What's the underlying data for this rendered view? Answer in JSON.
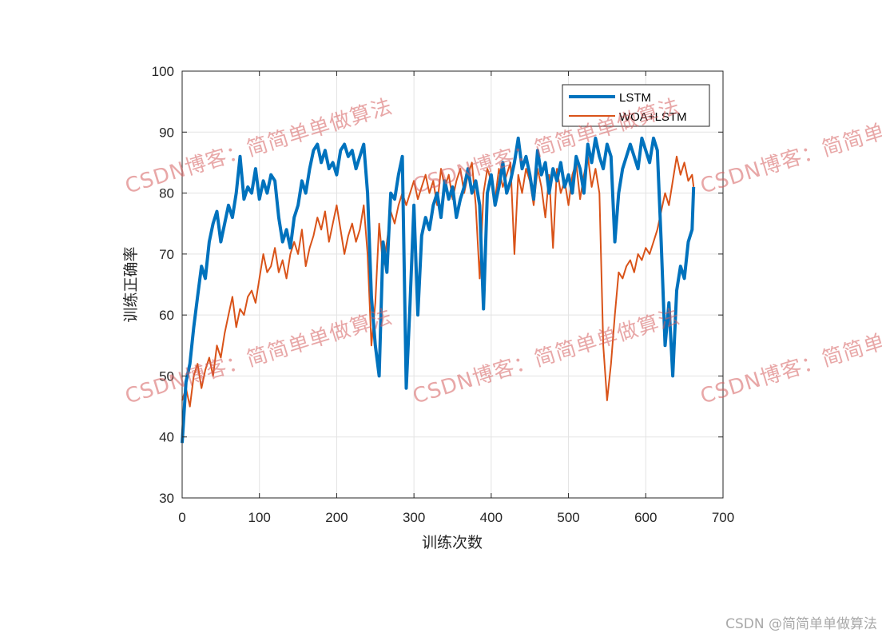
{
  "chart_data": {
    "type": "line",
    "title": "",
    "xlabel": "训练次数",
    "ylabel": "训练正确率",
    "xlim": [
      0,
      700
    ],
    "ylim": [
      30,
      100
    ],
    "xticks": [
      0,
      100,
      200,
      300,
      400,
      500,
      600,
      700
    ],
    "yticks": [
      30,
      40,
      50,
      60,
      70,
      80,
      90,
      100
    ],
    "grid": true,
    "legend_position": "top-right",
    "series": [
      {
        "name": "LSTM",
        "color": "#0072BD",
        "points": [
          [
            0,
            39
          ],
          [
            5,
            49
          ],
          [
            10,
            52
          ],
          [
            15,
            58
          ],
          [
            20,
            63
          ],
          [
            25,
            68
          ],
          [
            30,
            66
          ],
          [
            35,
            72
          ],
          [
            40,
            75
          ],
          [
            45,
            77
          ],
          [
            50,
            72
          ],
          [
            55,
            75
          ],
          [
            60,
            78
          ],
          [
            65,
            76
          ],
          [
            70,
            80
          ],
          [
            75,
            86
          ],
          [
            80,
            79
          ],
          [
            85,
            81
          ],
          [
            90,
            80
          ],
          [
            95,
            84
          ],
          [
            100,
            79
          ],
          [
            105,
            82
          ],
          [
            110,
            80
          ],
          [
            115,
            83
          ],
          [
            120,
            82
          ],
          [
            125,
            76
          ],
          [
            130,
            72
          ],
          [
            135,
            74
          ],
          [
            140,
            71
          ],
          [
            145,
            76
          ],
          [
            150,
            78
          ],
          [
            155,
            82
          ],
          [
            160,
            80
          ],
          [
            165,
            84
          ],
          [
            170,
            87
          ],
          [
            175,
            88
          ],
          [
            180,
            85
          ],
          [
            185,
            87
          ],
          [
            190,
            84
          ],
          [
            195,
            85
          ],
          [
            200,
            83
          ],
          [
            205,
            87
          ],
          [
            210,
            88
          ],
          [
            215,
            86
          ],
          [
            220,
            87
          ],
          [
            225,
            84
          ],
          [
            230,
            86
          ],
          [
            235,
            88
          ],
          [
            240,
            80
          ],
          [
            245,
            63
          ],
          [
            250,
            55
          ],
          [
            255,
            50
          ],
          [
            260,
            72
          ],
          [
            265,
            67
          ],
          [
            270,
            80
          ],
          [
            275,
            79
          ],
          [
            280,
            83
          ],
          [
            285,
            86
          ],
          [
            290,
            48
          ],
          [
            295,
            62
          ],
          [
            300,
            78
          ],
          [
            305,
            60
          ],
          [
            310,
            73
          ],
          [
            315,
            76
          ],
          [
            320,
            74
          ],
          [
            325,
            78
          ],
          [
            330,
            80
          ],
          [
            335,
            76
          ],
          [
            340,
            82
          ],
          [
            345,
            79
          ],
          [
            350,
            81
          ],
          [
            355,
            76
          ],
          [
            360,
            79
          ],
          [
            365,
            81
          ],
          [
            370,
            84
          ],
          [
            375,
            80
          ],
          [
            380,
            82
          ],
          [
            385,
            78
          ],
          [
            390,
            61
          ],
          [
            395,
            80
          ],
          [
            400,
            83
          ],
          [
            405,
            78
          ],
          [
            410,
            81
          ],
          [
            415,
            85
          ],
          [
            420,
            80
          ],
          [
            425,
            82
          ],
          [
            430,
            85
          ],
          [
            435,
            89
          ],
          [
            440,
            84
          ],
          [
            445,
            86
          ],
          [
            450,
            83
          ],
          [
            455,
            79
          ],
          [
            460,
            87
          ],
          [
            465,
            83
          ],
          [
            470,
            85
          ],
          [
            475,
            80
          ],
          [
            480,
            84
          ],
          [
            485,
            82
          ],
          [
            490,
            85
          ],
          [
            495,
            81
          ],
          [
            500,
            83
          ],
          [
            505,
            80
          ],
          [
            510,
            86
          ],
          [
            515,
            84
          ],
          [
            520,
            80
          ],
          [
            525,
            88
          ],
          [
            530,
            85
          ],
          [
            535,
            89
          ],
          [
            540,
            86
          ],
          [
            545,
            84
          ],
          [
            550,
            88
          ],
          [
            555,
            86
          ],
          [
            560,
            72
          ],
          [
            565,
            80
          ],
          [
            570,
            84
          ],
          [
            575,
            86
          ],
          [
            580,
            88
          ],
          [
            585,
            86
          ],
          [
            590,
            84
          ],
          [
            595,
            89
          ],
          [
            600,
            87
          ],
          [
            605,
            85
          ],
          [
            610,
            89
          ],
          [
            615,
            87
          ],
          [
            620,
            72
          ],
          [
            625,
            55
          ],
          [
            630,
            62
          ],
          [
            635,
            50
          ],
          [
            640,
            64
          ],
          [
            645,
            68
          ],
          [
            650,
            66
          ],
          [
            655,
            72
          ],
          [
            660,
            74
          ],
          [
            662,
            81
          ]
        ]
      },
      {
        "name": "WOA+LSTM",
        "color": "#D95319",
        "points": [
          [
            0,
            46
          ],
          [
            5,
            48
          ],
          [
            10,
            45
          ],
          [
            15,
            50
          ],
          [
            20,
            52
          ],
          [
            25,
            48
          ],
          [
            30,
            51
          ],
          [
            35,
            53
          ],
          [
            40,
            50
          ],
          [
            45,
            55
          ],
          [
            50,
            53
          ],
          [
            55,
            57
          ],
          [
            60,
            60
          ],
          [
            65,
            63
          ],
          [
            70,
            58
          ],
          [
            75,
            61
          ],
          [
            80,
            60
          ],
          [
            85,
            63
          ],
          [
            90,
            64
          ],
          [
            95,
            62
          ],
          [
            100,
            66
          ],
          [
            105,
            70
          ],
          [
            110,
            67
          ],
          [
            115,
            68
          ],
          [
            120,
            71
          ],
          [
            125,
            67
          ],
          [
            130,
            69
          ],
          [
            135,
            66
          ],
          [
            140,
            70
          ],
          [
            145,
            72
          ],
          [
            150,
            70
          ],
          [
            155,
            74
          ],
          [
            160,
            68
          ],
          [
            165,
            71
          ],
          [
            170,
            73
          ],
          [
            175,
            76
          ],
          [
            180,
            74
          ],
          [
            185,
            77
          ],
          [
            190,
            72
          ],
          [
            195,
            75
          ],
          [
            200,
            78
          ],
          [
            205,
            74
          ],
          [
            210,
            70
          ],
          [
            215,
            73
          ],
          [
            220,
            75
          ],
          [
            225,
            72
          ],
          [
            230,
            74
          ],
          [
            235,
            78
          ],
          [
            240,
            70
          ],
          [
            245,
            55
          ],
          [
            250,
            62
          ],
          [
            255,
            75
          ],
          [
            260,
            68
          ],
          [
            265,
            72
          ],
          [
            270,
            77
          ],
          [
            275,
            75
          ],
          [
            280,
            78
          ],
          [
            285,
            80
          ],
          [
            290,
            78
          ],
          [
            295,
            80
          ],
          [
            300,
            82
          ],
          [
            305,
            79
          ],
          [
            310,
            81
          ],
          [
            315,
            83
          ],
          [
            320,
            80
          ],
          [
            325,
            82
          ],
          [
            330,
            78
          ],
          [
            335,
            84
          ],
          [
            340,
            81
          ],
          [
            345,
            83
          ],
          [
            350,
            79
          ],
          [
            355,
            82
          ],
          [
            360,
            84
          ],
          [
            365,
            80
          ],
          [
            370,
            83
          ],
          [
            375,
            85
          ],
          [
            380,
            78
          ],
          [
            385,
            66
          ],
          [
            390,
            80
          ],
          [
            395,
            84
          ],
          [
            400,
            82
          ],
          [
            405,
            79
          ],
          [
            410,
            84
          ],
          [
            415,
            81
          ],
          [
            420,
            83
          ],
          [
            425,
            85
          ],
          [
            430,
            70
          ],
          [
            435,
            83
          ],
          [
            440,
            80
          ],
          [
            445,
            84
          ],
          [
            450,
            82
          ],
          [
            455,
            78
          ],
          [
            460,
            84
          ],
          [
            465,
            81
          ],
          [
            470,
            76
          ],
          [
            475,
            83
          ],
          [
            480,
            71
          ],
          [
            485,
            84
          ],
          [
            490,
            80
          ],
          [
            495,
            82
          ],
          [
            500,
            78
          ],
          [
            505,
            83
          ],
          [
            510,
            85
          ],
          [
            515,
            79
          ],
          [
            520,
            83
          ],
          [
            525,
            86
          ],
          [
            530,
            81
          ],
          [
            535,
            84
          ],
          [
            540,
            80
          ],
          [
            545,
            55
          ],
          [
            550,
            46
          ],
          [
            555,
            52
          ],
          [
            560,
            60
          ],
          [
            565,
            67
          ],
          [
            570,
            66
          ],
          [
            575,
            68
          ],
          [
            580,
            69
          ],
          [
            585,
            67
          ],
          [
            590,
            70
          ],
          [
            595,
            69
          ],
          [
            600,
            71
          ],
          [
            605,
            70
          ],
          [
            610,
            72
          ],
          [
            615,
            74
          ],
          [
            620,
            77
          ],
          [
            625,
            80
          ],
          [
            630,
            78
          ],
          [
            635,
            82
          ],
          [
            640,
            86
          ],
          [
            645,
            83
          ],
          [
            650,
            85
          ],
          [
            655,
            82
          ],
          [
            660,
            83
          ],
          [
            662,
            81
          ]
        ]
      }
    ]
  },
  "watermark": {
    "text": "CSDN博客：简简单单做算法"
  },
  "footer": {
    "credit": "CSDN @简简单单做算法"
  }
}
